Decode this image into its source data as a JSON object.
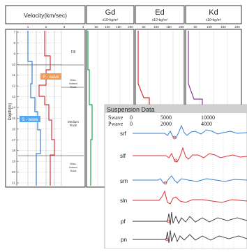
{
  "headers": {
    "velocity": "Velocity(km/sec)",
    "gd": "Gd",
    "ed": "Ed",
    "kd": "Kd",
    "unit": "x10⁶kg/m²"
  },
  "velocity_ticks": [
    "1",
    "2",
    "3",
    "4"
  ],
  "modulus_ticks": [
    "50",
    "100",
    "150",
    "200"
  ],
  "depth_label": "Depth(m)",
  "depth_ticks": [
    "7",
    "8",
    "9",
    "10",
    "11",
    "12",
    "13",
    "14",
    "15",
    "16",
    "17",
    "18",
    "19",
    "20",
    "21"
  ],
  "layers": {
    "fill": "Fill",
    "weathered_1": "Wea-thered Rock",
    "medium": "Medium Rock",
    "weathered_2": "Wea-thered Rock"
  },
  "wave_labels": {
    "p_wave": "P - wave",
    "s_wave": "S - wave"
  },
  "suspension": {
    "title": "Suspension Data",
    "swave_label": "Swave",
    "pwave_label": "Pwave",
    "swave_ticks": [
      "0",
      "5000",
      "10000"
    ],
    "pwave_ticks": [
      "0",
      "2000",
      "4000"
    ],
    "traces": [
      "srf",
      "slf",
      "srn",
      "sln",
      "pf",
      "pn"
    ]
  },
  "colors": {
    "s_wave": "#3a7fd0",
    "p_wave": "#d8363d",
    "gd": "#1aa34a",
    "ed": "#d9302b",
    "kd": "#8a3a93",
    "panel_bg": "#cfcfcf",
    "label_box": "#f29a55",
    "s_label_box": "#58a8ef"
  }
}
